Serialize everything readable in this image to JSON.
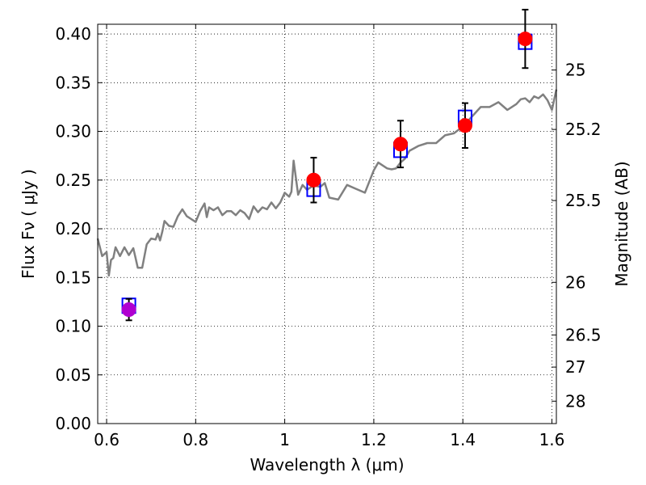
{
  "chart_data": {
    "type": "scatter",
    "title": "",
    "xlabel": "Wavelength  λ (μm)",
    "ylabel": "Flux  Fν  ( μJy )",
    "y2label": "Magnitude (AB)",
    "xlim": [
      0.58,
      1.61
    ],
    "ylim": [
      0.0,
      0.41
    ],
    "grid": true,
    "x_ticks": [
      0.6,
      0.8,
      1.0,
      1.2,
      1.4,
      1.6
    ],
    "x_tick_labels": [
      "0.6",
      "0.8",
      "1",
      "1.2",
      "1.4",
      "1.6"
    ],
    "y_ticks": [
      0.0,
      0.05,
      0.1,
      0.15,
      0.2,
      0.25,
      0.3,
      0.35,
      0.4
    ],
    "y_tick_labels": [
      "0.00",
      "0.05",
      "0.10",
      "0.15",
      "0.20",
      "0.25",
      "0.30",
      "0.35",
      "0.40"
    ],
    "y2_ticks": [
      {
        "label": "25",
        "flux": 0.363
      },
      {
        "label": "25.2",
        "flux": 0.302
      },
      {
        "label": "25.5",
        "flux": 0.229
      },
      {
        "label": "26",
        "flux": 0.145
      },
      {
        "label": "26.5",
        "flux": 0.091
      },
      {
        "label": "27",
        "flux": 0.058
      },
      {
        "label": "28",
        "flux": 0.023
      }
    ],
    "series": [
      {
        "kind": "model-spectrum",
        "color": "#808080",
        "x": [
          0.58,
          0.59,
          0.6,
          0.605,
          0.61,
          0.615,
          0.62,
          0.63,
          0.64,
          0.65,
          0.66,
          0.665,
          0.67,
          0.68,
          0.69,
          0.7,
          0.71,
          0.715,
          0.72,
          0.725,
          0.73,
          0.74,
          0.75,
          0.76,
          0.77,
          0.78,
          0.79,
          0.8,
          0.81,
          0.82,
          0.825,
          0.83,
          0.84,
          0.85,
          0.86,
          0.87,
          0.88,
          0.89,
          0.9,
          0.91,
          0.92,
          0.93,
          0.94,
          0.95,
          0.96,
          0.97,
          0.98,
          0.99,
          1.0,
          1.01,
          1.015,
          1.02,
          1.03,
          1.04,
          1.05,
          1.06,
          1.07,
          1.08,
          1.09,
          1.1,
          1.12,
          1.14,
          1.16,
          1.18,
          1.2,
          1.21,
          1.22,
          1.23,
          1.24,
          1.25,
          1.26,
          1.27,
          1.28,
          1.3,
          1.32,
          1.34,
          1.36,
          1.38,
          1.4,
          1.42,
          1.44,
          1.46,
          1.48,
          1.5,
          1.52,
          1.53,
          1.54,
          1.55,
          1.56,
          1.57,
          1.58,
          1.59,
          1.6,
          1.61
        ],
        "y": [
          0.19,
          0.172,
          0.176,
          0.152,
          0.168,
          0.17,
          0.181,
          0.172,
          0.181,
          0.173,
          0.18,
          0.17,
          0.16,
          0.16,
          0.184,
          0.19,
          0.189,
          0.195,
          0.188,
          0.197,
          0.208,
          0.203,
          0.202,
          0.213,
          0.22,
          0.213,
          0.21,
          0.207,
          0.218,
          0.226,
          0.212,
          0.222,
          0.219,
          0.222,
          0.214,
          0.218,
          0.218,
          0.214,
          0.219,
          0.216,
          0.21,
          0.223,
          0.217,
          0.222,
          0.22,
          0.227,
          0.221,
          0.227,
          0.237,
          0.233,
          0.238,
          0.27,
          0.235,
          0.245,
          0.24,
          0.243,
          0.244,
          0.243,
          0.247,
          0.232,
          0.23,
          0.245,
          0.241,
          0.237,
          0.26,
          0.268,
          0.265,
          0.262,
          0.261,
          0.262,
          0.268,
          0.272,
          0.28,
          0.285,
          0.288,
          0.288,
          0.296,
          0.298,
          0.305,
          0.315,
          0.325,
          0.325,
          0.33,
          0.322,
          0.328,
          0.333,
          0.334,
          0.33,
          0.336,
          0.334,
          0.338,
          0.332,
          0.322,
          0.343
        ]
      },
      {
        "kind": "model-bandpass",
        "marker": "open-square",
        "color": "#0000ff",
        "x": [
          0.65,
          1.065,
          1.26,
          1.405,
          1.54
        ],
        "y": [
          0.121,
          0.241,
          0.281,
          0.314,
          0.392
        ]
      },
      {
        "kind": "observed",
        "marker": "filled-circle",
        "color": "#ff0000",
        "colors": [
          "#b000d0",
          "#ff0000",
          "#ff0000",
          "#ff0000",
          "#ff0000"
        ],
        "x": [
          0.65,
          1.065,
          1.26,
          1.405,
          1.54
        ],
        "y": [
          0.117,
          0.25,
          0.287,
          0.306,
          0.395
        ],
        "yerr": [
          0.011,
          0.023,
          0.024,
          0.023,
          0.03
        ]
      }
    ]
  }
}
